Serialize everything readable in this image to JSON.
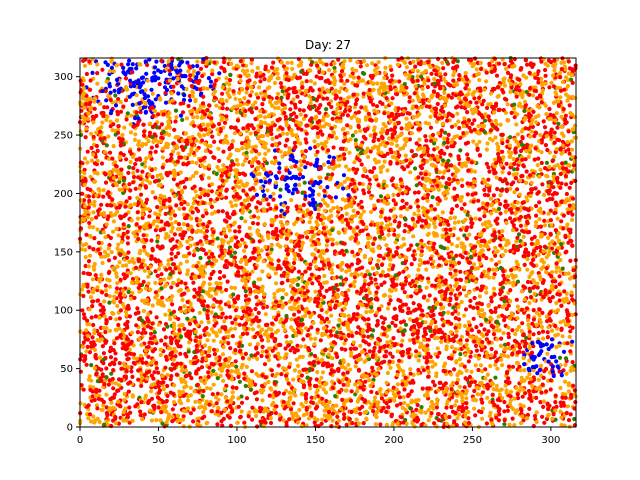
{
  "chart_data": {
    "type": "scatter",
    "title": "Day: 27",
    "xlabel": "",
    "ylabel": "",
    "xlim": [
      0,
      316
    ],
    "ylim": [
      0,
      316
    ],
    "xticks": [
      0,
      50,
      100,
      150,
      200,
      250,
      300
    ],
    "yticks": [
      0,
      50,
      100,
      150,
      200,
      250,
      300
    ],
    "grid": false,
    "colors": {
      "blue": "#0000ff",
      "red": "#ff0000",
      "orange": "#ffa500",
      "green": "#2e7d00",
      "background": "#ffffff"
    },
    "regions": [
      {
        "color": "blue",
        "center": [
          45,
          300
        ],
        "radius": 45
      },
      {
        "color": "blue",
        "center": [
          140,
          210
        ],
        "radius": 35
      },
      {
        "color": "blue",
        "center": [
          300,
          60
        ],
        "radius": 22
      },
      {
        "color": "red",
        "center": [
          30,
          60
        ],
        "radius": 55
      },
      {
        "color": "red",
        "center": [
          280,
          200
        ],
        "radius": 45
      },
      {
        "color": "red",
        "center": [
          210,
          100
        ],
        "radius": 60
      }
    ]
  }
}
